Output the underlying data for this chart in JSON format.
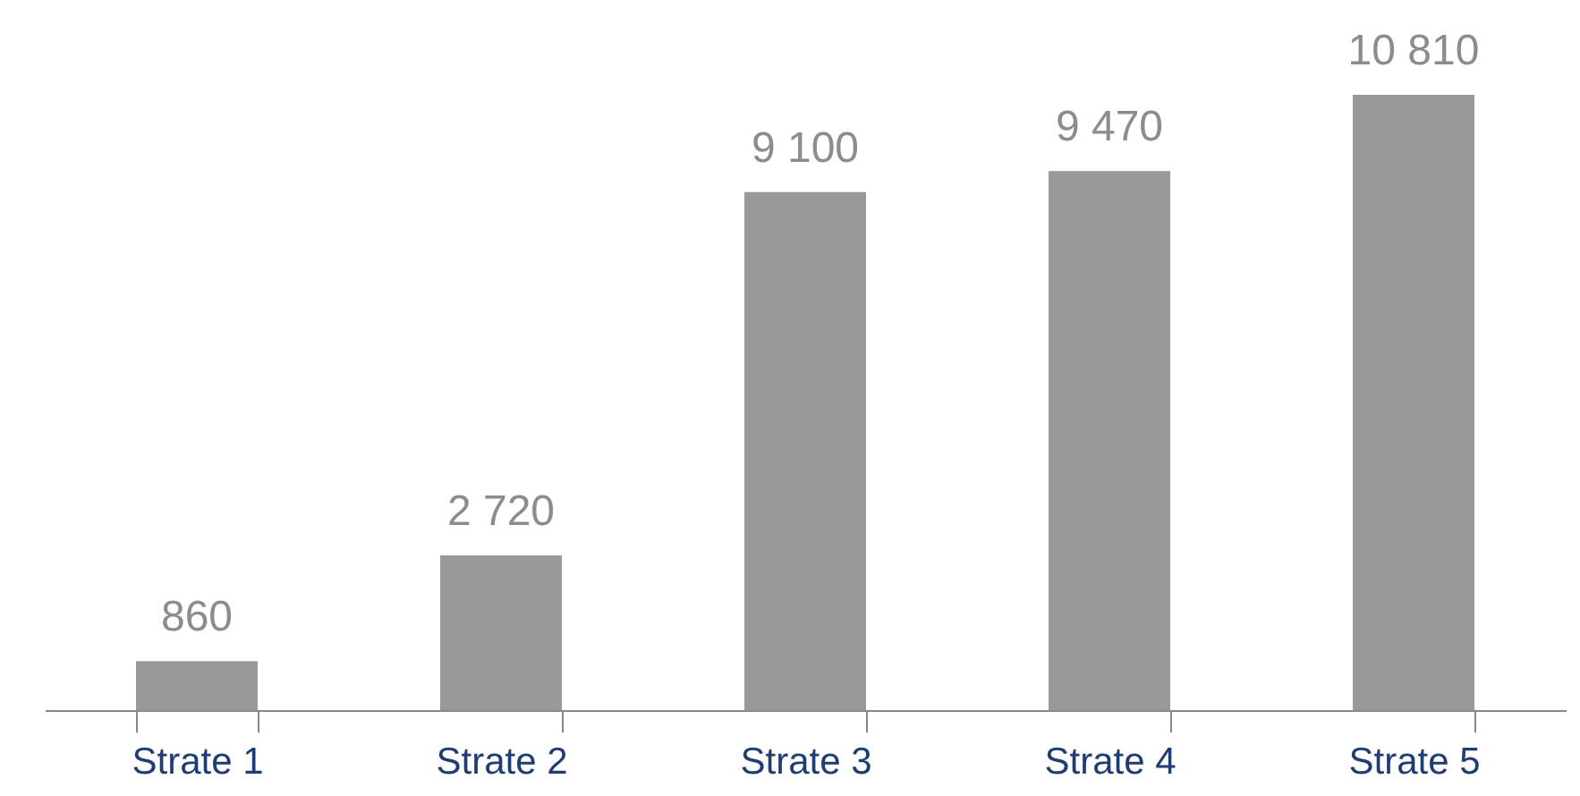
{
  "chart_data": {
    "type": "bar",
    "categories": [
      "Strate 1",
      "Strate 2",
      "Strate 3",
      "Strate 4",
      "Strate 5"
    ],
    "values": [
      860,
      2720,
      9100,
      9470,
      10810
    ],
    "value_labels": [
      "860",
      "2 720",
      "9 100",
      "9 470",
      "10 810"
    ],
    "color": "#999999"
  }
}
